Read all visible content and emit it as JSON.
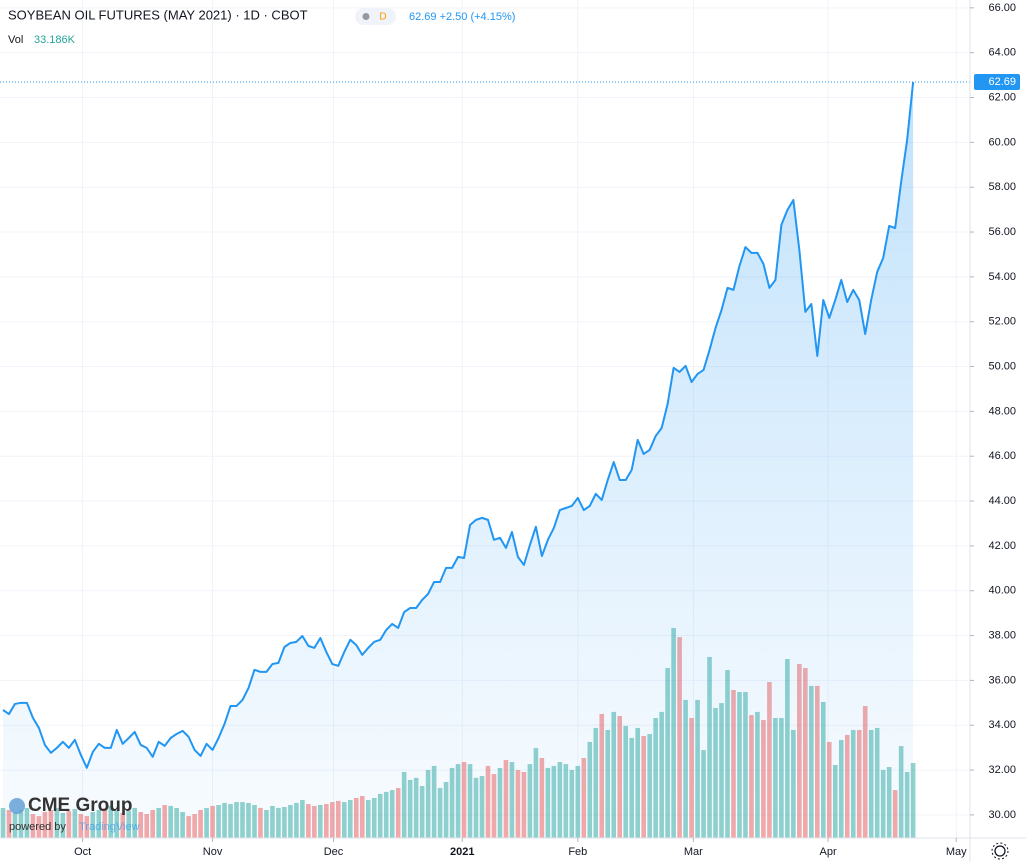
{
  "chart_data": {
    "type": "line",
    "title": "SOYBEAN OIL FUTURES (MAY 2021) · 1D · CBOT",
    "interval_badge": "D",
    "quote": "62.69 +2.50 (+4.15%)",
    "series": [
      {
        "name": "Soybean Oil",
        "color": "#2196f3",
        "values": [
          34.68,
          34.5,
          34.95,
          35.0,
          35.0,
          34.33,
          33.88,
          33.12,
          32.77,
          32.99,
          33.26,
          32.99,
          33.35,
          32.68,
          32.1,
          32.81,
          33.17,
          32.99,
          32.99,
          33.79,
          33.17,
          33.43,
          33.7,
          33.12,
          32.99,
          32.59,
          33.26,
          33.08,
          33.43,
          33.61,
          33.75,
          33.48,
          32.9,
          32.63,
          33.17,
          32.9,
          33.43,
          34.06,
          34.86,
          34.86,
          35.13,
          35.66,
          36.47,
          36.38,
          36.38,
          36.73,
          36.78,
          37.49,
          37.67,
          37.72,
          37.98,
          37.54,
          37.45,
          37.89,
          37.27,
          36.73,
          36.65,
          37.27,
          37.81,
          37.58,
          37.14,
          37.45,
          37.72,
          37.81,
          38.25,
          38.52,
          38.34,
          39.05,
          39.23,
          39.23,
          39.59,
          39.86,
          40.39,
          40.39,
          41.02,
          41.02,
          41.51,
          41.46,
          42.93,
          43.16,
          43.25,
          43.16,
          42.27,
          42.36,
          41.91,
          42.62,
          41.51,
          41.15,
          42.04,
          42.85,
          41.55,
          42.27,
          42.8,
          43.6,
          43.69,
          43.78,
          44.14,
          43.6,
          43.78,
          44.32,
          44.05,
          44.94,
          45.74,
          44.94,
          44.94,
          45.39,
          46.73,
          46.1,
          46.28,
          46.9,
          47.26,
          48.33,
          49.94,
          49.76,
          50.03,
          49.31,
          49.67,
          49.85,
          50.74,
          51.72,
          52.52,
          53.51,
          53.42,
          54.49,
          55.33,
          55.07,
          55.07,
          54.58,
          53.51,
          53.86,
          56.32,
          56.98,
          57.43,
          55.2,
          52.44,
          52.79,
          50.47,
          52.97,
          52.17,
          52.97,
          53.86,
          52.88,
          53.42,
          52.97,
          51.45,
          52.97,
          54.22,
          54.84,
          56.27,
          56.18,
          58.23,
          60.11,
          62.69
        ]
      }
    ],
    "volume": {
      "name": "Vol",
      "value_label": "33.186K",
      "up_color": "rgba(38,166,154,0.5)",
      "down_color": "rgba(239,83,80,0.5)",
      "values": [
        13.3,
        12.4,
        11.5,
        12.4,
        13.3,
        10.6,
        9.7,
        11.5,
        12.4,
        13.3,
        11.1,
        11.9,
        12.8,
        10.6,
        9.7,
        11.5,
        12.4,
        13.3,
        14.2,
        12.4,
        11.1,
        11.9,
        13.3,
        11.5,
        10.6,
        12.4,
        13.3,
        14.6,
        14.2,
        13.3,
        11.5,
        9.7,
        10.6,
        12.4,
        13.3,
        14.2,
        14.6,
        15.5,
        15.0,
        15.9,
        15.9,
        15.5,
        14.6,
        13.3,
        12.4,
        14.2,
        13.3,
        13.7,
        14.6,
        15.5,
        16.8,
        15.0,
        14.2,
        14.6,
        15.0,
        15.9,
        16.4,
        15.9,
        16.8,
        17.7,
        18.6,
        16.8,
        17.7,
        19.5,
        20.4,
        21.2,
        22.1,
        29.2,
        25.7,
        26.6,
        23.0,
        30.1,
        31.9,
        22.1,
        24.8,
        31.0,
        32.7,
        33.6,
        32.7,
        26.6,
        27.4,
        31.9,
        28.3,
        31.0,
        34.5,
        33.6,
        30.1,
        29.2,
        32.7,
        39.8,
        35.4,
        31.0,
        31.9,
        33.6,
        32.7,
        30.1,
        31.9,
        35.4,
        42.5,
        48.7,
        54.9,
        47.8,
        55.8,
        54.0,
        49.6,
        44.3,
        48.7,
        45.1,
        46.0,
        53.1,
        55.8,
        75.2,
        92.9,
        88.9,
        61.1,
        53.1,
        61.1,
        38.9,
        80.1,
        57.5,
        59.7,
        74.3,
        65.5,
        64.6,
        64.6,
        54.4,
        55.8,
        52.2,
        69.0,
        53.1,
        53.1,
        79.2,
        47.8,
        77.0,
        75.2,
        67.3,
        67.3,
        60.2,
        42.5,
        32.3,
        43.4,
        45.6,
        47.8,
        47.8,
        58.4,
        47.8,
        48.7,
        30.1,
        31.4,
        21.2,
        40.7,
        29.2,
        33.186
      ]
    },
    "ylim": [
      28.97,
      66.35
    ],
    "yticks": [
      {
        "value": 30,
        "label": "30.00"
      },
      {
        "value": 32,
        "label": "32.00"
      },
      {
        "value": 34,
        "label": "34.00"
      },
      {
        "value": 36,
        "label": "36.00"
      },
      {
        "value": 38,
        "label": "38.00"
      },
      {
        "value": 40,
        "label": "40.00"
      },
      {
        "value": 42,
        "label": "42.00"
      },
      {
        "value": 44,
        "label": "44.00"
      },
      {
        "value": 46,
        "label": "46.00"
      },
      {
        "value": 48,
        "label": "48.00"
      },
      {
        "value": 50,
        "label": "50.00"
      },
      {
        "value": 52,
        "label": "52.00"
      },
      {
        "value": 54,
        "label": "54.00"
      },
      {
        "value": 56,
        "label": "56.00"
      },
      {
        "value": 58,
        "label": "58.00"
      },
      {
        "value": 60,
        "label": "60.00"
      },
      {
        "value": 62,
        "label": "62.00"
      },
      {
        "value": 64,
        "label": "64.00"
      },
      {
        "value": 66,
        "label": "66.00"
      }
    ],
    "xlim": [
      -0.5,
      161.5
    ],
    "xticks": [
      {
        "value": 13.3,
        "label": "Oct"
      },
      {
        "value": 35,
        "label": "Nov"
      },
      {
        "value": 55.2,
        "label": "Dec"
      },
      {
        "value": 76.7,
        "label": "2021"
      },
      {
        "value": 96,
        "label": "Feb"
      },
      {
        "value": 115.3,
        "label": "Mar"
      },
      {
        "value": 137.8,
        "label": "Apr"
      },
      {
        "value": 159.2,
        "label": "May"
      }
    ],
    "grid": true,
    "logo": {
      "brand": "CME Group",
      "powered": "powered by",
      "platform": "TradingView"
    }
  }
}
